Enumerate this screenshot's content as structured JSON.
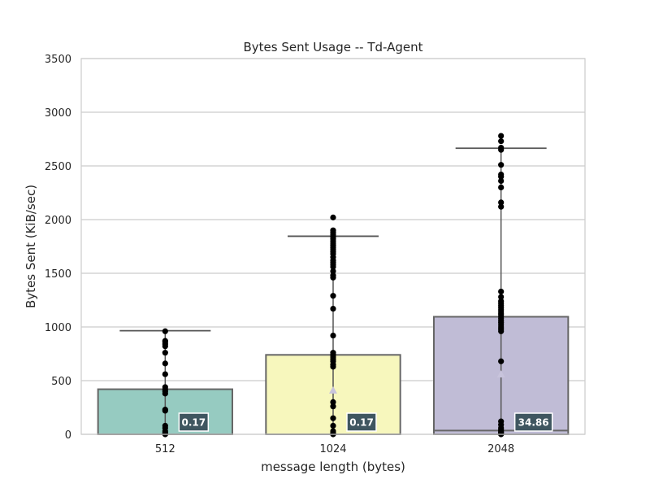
{
  "chart_data": {
    "type": "bar",
    "title": "Bytes Sent Usage -- Td-Agent",
    "xlabel": "message length (bytes)",
    "ylabel": "Bytes Sent (KiB/sec)",
    "ylim": [
      0,
      3500
    ],
    "yticks": [
      0,
      500,
      1000,
      1500,
      2000,
      2500,
      3000,
      3500
    ],
    "grid": true,
    "categories": [
      "512",
      "1024",
      "2048"
    ],
    "colors": [
      "#96cbc1",
      "#f7f7bd",
      "#c0bcd6"
    ],
    "bar_values": [
      420,
      740,
      1095
    ],
    "whisker_low": [
      0,
      0,
      0
    ],
    "whisker_high": [
      965,
      1845,
      2665
    ],
    "means": [
      null,
      410,
      560
    ],
    "median_values": [
      0.17,
      0.17,
      34.86
    ],
    "median_labels": [
      "0.17",
      "0.17",
      "34.86"
    ],
    "points": [
      [
        0,
        5,
        15,
        30,
        60,
        80,
        220,
        230,
        380,
        400,
        420,
        440,
        560,
        660,
        760,
        820,
        840,
        860,
        870,
        960
      ],
      [
        0,
        10,
        30,
        80,
        150,
        260,
        300,
        630,
        650,
        680,
        700,
        720,
        740,
        760,
        920,
        1170,
        1290,
        1460,
        1480,
        1520,
        1560,
        1580,
        1600,
        1620,
        1650,
        1680,
        1700,
        1720,
        1740,
        1760,
        1780,
        1800,
        1820,
        1840,
        1860,
        1880,
        1900,
        2020
      ],
      [
        0,
        10,
        20,
        30,
        40,
        60,
        90,
        120,
        680,
        960,
        980,
        1000,
        1020,
        1040,
        1060,
        1080,
        1100,
        1120,
        1140,
        1160,
        1180,
        1200,
        1220,
        1240,
        1280,
        1330,
        2120,
        2160,
        2300,
        2360,
        2400,
        2420,
        2510,
        2650,
        2670,
        2730,
        2780
      ]
    ]
  }
}
